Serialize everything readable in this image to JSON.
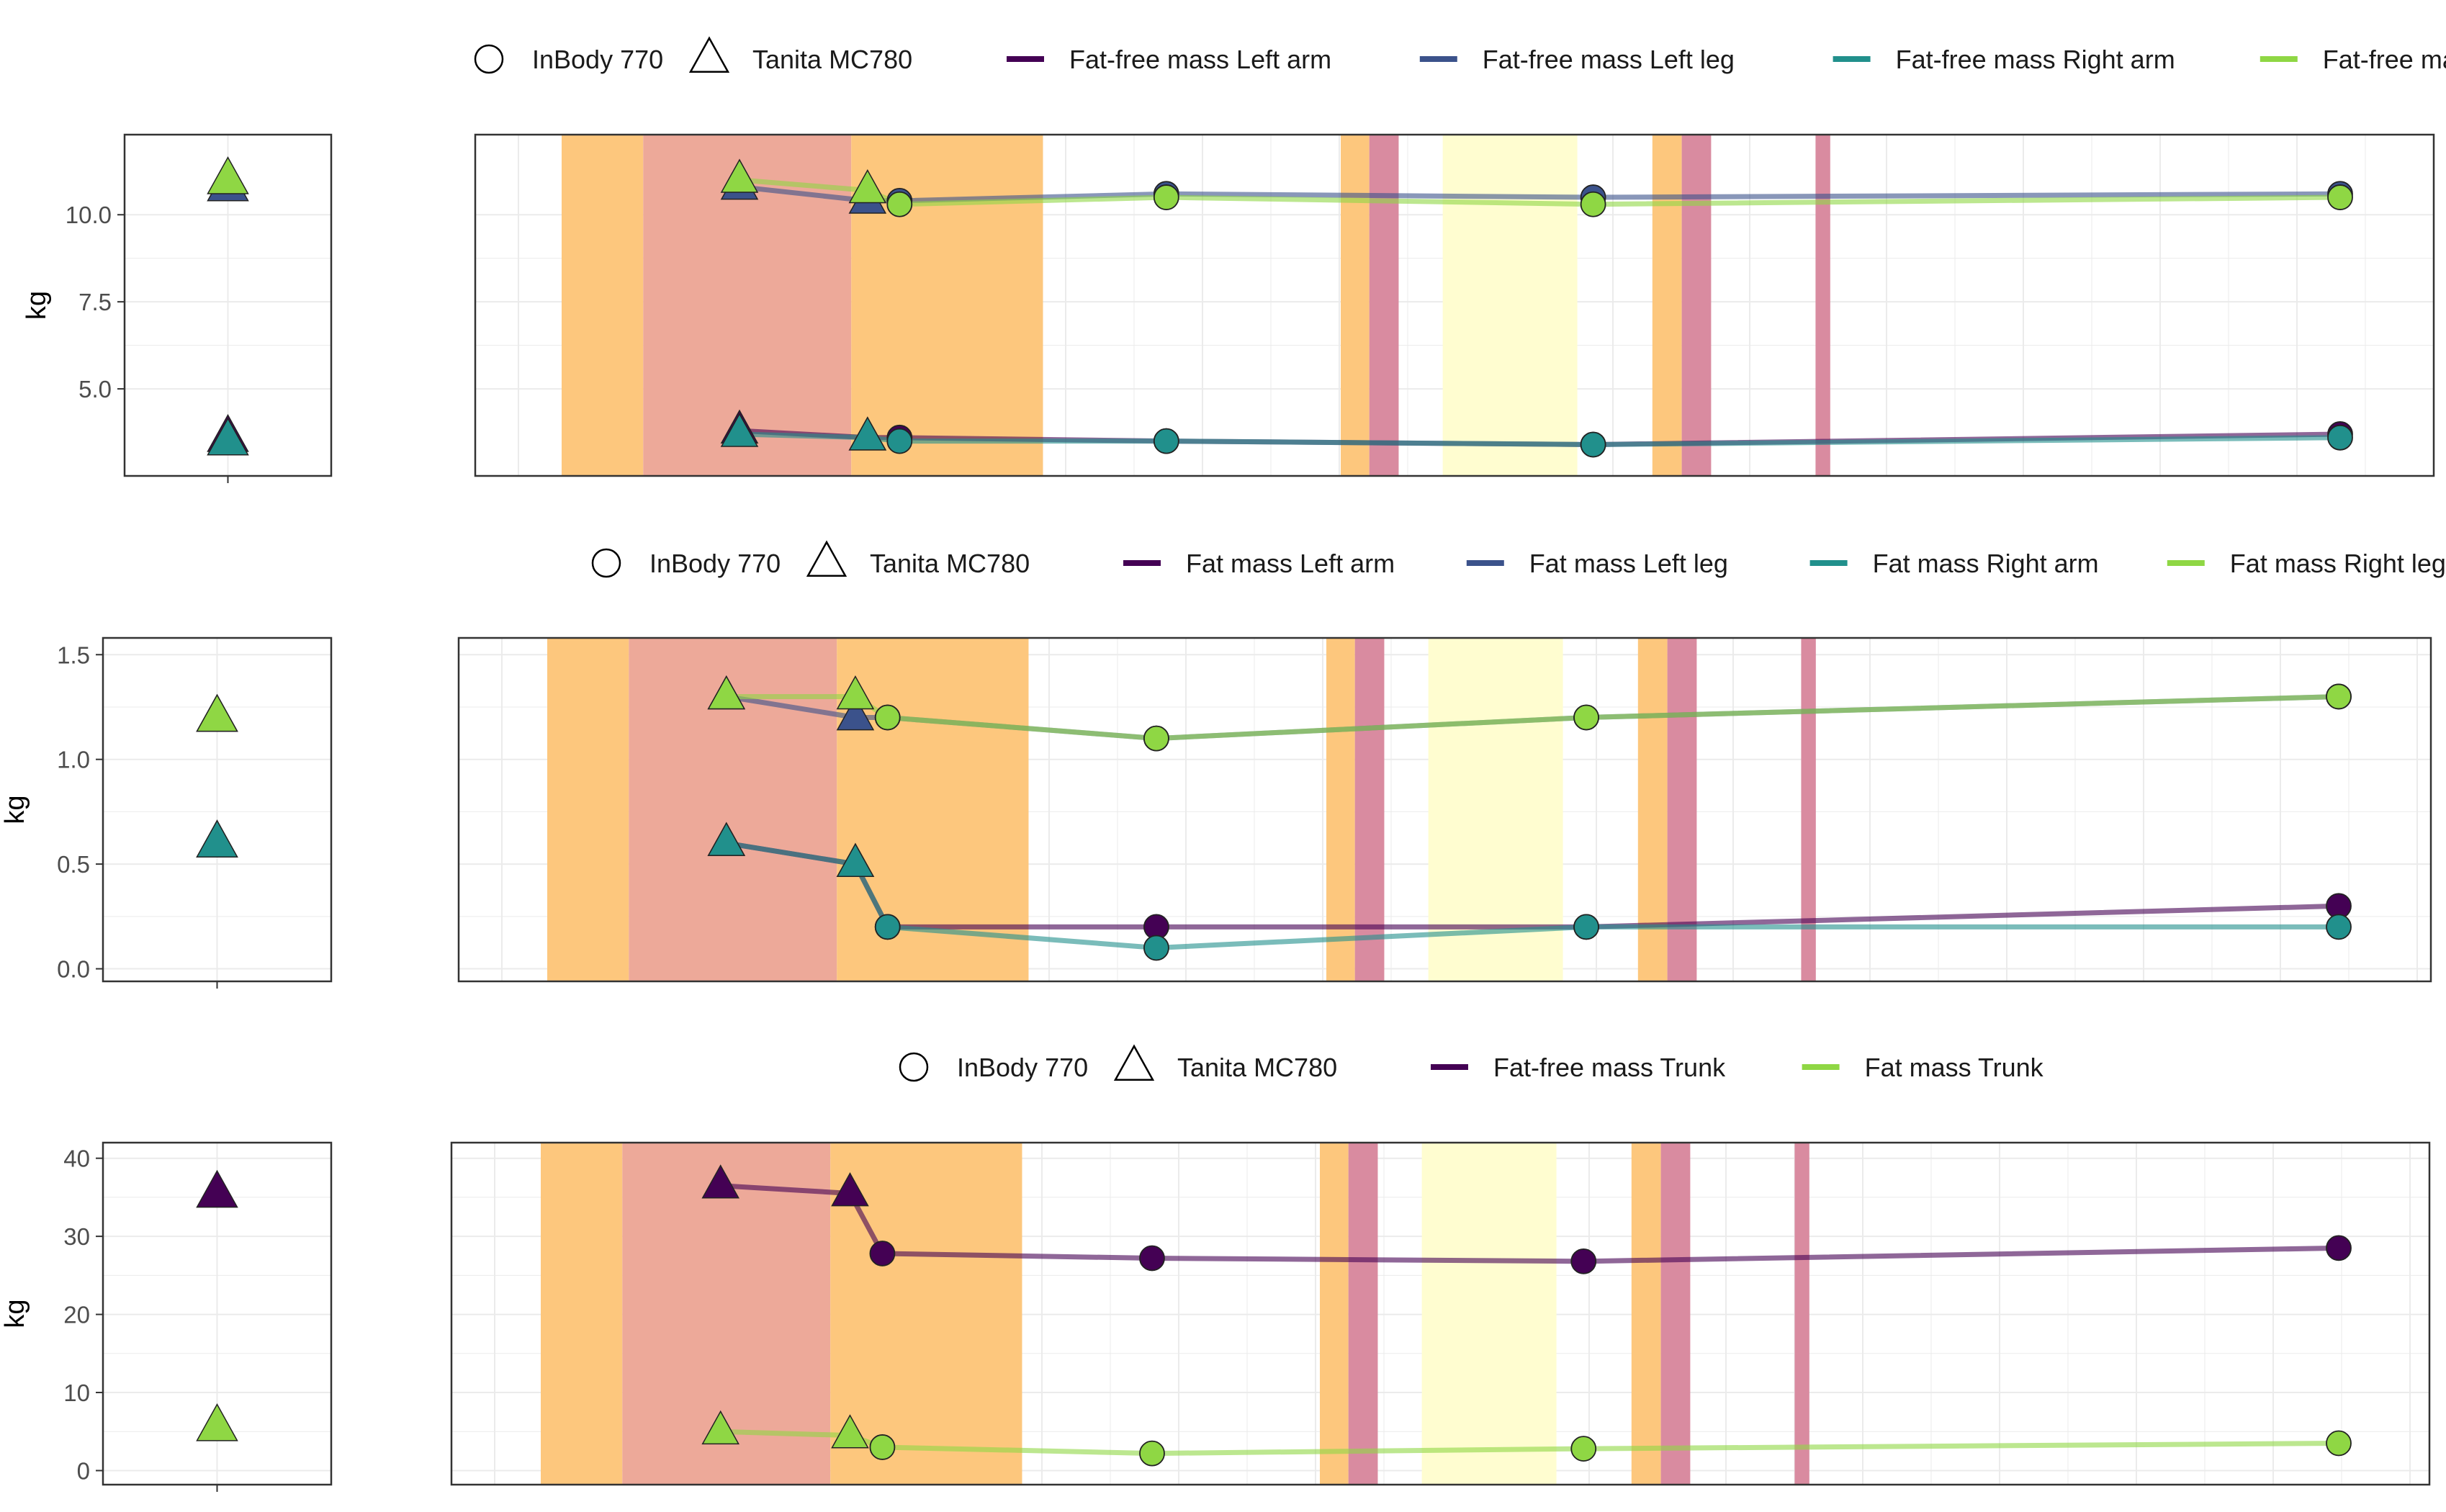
{
  "colors": {
    "orange_band": "#fdc77d",
    "salmon_band": "#eda999",
    "red_band": "#d98ba0",
    "yellow_band": "#fffdd0",
    "grid": "#ebebeb",
    "panel_border": "#333333",
    "line_alpha": 0.6
  },
  "chart_data": [
    {
      "type": "line",
      "ylabel": "kg",
      "ylim": [
        2.5,
        12.3
      ],
      "yticks": [
        5.0,
        7.5,
        10.0
      ],
      "ytick_labels": [
        "5.0",
        "7.5",
        "10.0"
      ],
      "legend_shapes": [
        {
          "shape": "circle",
          "label": "InBody 770"
        },
        {
          "shape": "triangle",
          "label": "Tanita MC780"
        }
      ],
      "series": [
        {
          "name": "Fat-free mass Left arm",
          "color": "#440154",
          "baseline": 3.6,
          "tanita": [
            [
              0.1,
              3.8
            ],
            [
              0.172,
              3.6
            ]
          ],
          "inbody": [
            [
              0.19,
              3.6
            ],
            [
              0.34,
              3.5
            ],
            [
              0.58,
              3.4
            ],
            [
              1.0,
              3.7
            ]
          ]
        },
        {
          "name": "Fat-free mass Left leg",
          "color": "#3b528b",
          "baseline": 10.8,
          "tanita": [
            [
              0.1,
              10.8
            ],
            [
              0.172,
              10.4
            ]
          ],
          "inbody": [
            [
              0.19,
              10.4
            ],
            [
              0.34,
              10.6
            ],
            [
              0.58,
              10.5
            ],
            [
              1.0,
              10.6
            ]
          ]
        },
        {
          "name": "Fat-free mass Right arm",
          "color": "#21908c",
          "baseline": 3.5,
          "tanita": [
            [
              0.1,
              3.7
            ],
            [
              0.172,
              3.6
            ]
          ],
          "inbody": [
            [
              0.19,
              3.5
            ],
            [
              0.34,
              3.5
            ],
            [
              0.58,
              3.4
            ],
            [
              1.0,
              3.6
            ]
          ]
        },
        {
          "name": "Fat-free mass Right leg",
          "color": "#8fd744",
          "baseline": 11.0,
          "tanita": [
            [
              0.1,
              11.0
            ],
            [
              0.172,
              10.7
            ]
          ],
          "inbody": [
            [
              0.19,
              10.3
            ],
            [
              0.34,
              10.5
            ],
            [
              0.58,
              10.3
            ],
            [
              1.0,
              10.5
            ]
          ]
        }
      ]
    },
    {
      "type": "line",
      "ylabel": "kg",
      "ylim": [
        -0.06,
        1.58
      ],
      "yticks": [
        0.0,
        0.5,
        1.0,
        1.5
      ],
      "ytick_labels": [
        "0.0",
        "0.5",
        "1.0",
        "1.5"
      ],
      "legend_shapes": [
        {
          "shape": "circle",
          "label": "InBody 770"
        },
        {
          "shape": "triangle",
          "label": "Tanita MC780"
        }
      ],
      "series": [
        {
          "name": "Fat mass Left arm",
          "color": "#440154",
          "baseline": 0.6,
          "tanita": [
            [
              0.1,
              0.6
            ],
            [
              0.172,
              0.5
            ]
          ],
          "inbody": [
            [
              0.19,
              0.2
            ],
            [
              0.34,
              0.2
            ],
            [
              0.58,
              0.2
            ],
            [
              1.0,
              0.3
            ]
          ]
        },
        {
          "name": "Fat mass Left leg",
          "color": "#3b528b",
          "baseline": 1.2,
          "tanita": [
            [
              0.1,
              1.3
            ],
            [
              0.172,
              1.2
            ]
          ],
          "inbody": [
            [
              0.19,
              1.2
            ],
            [
              0.34,
              1.1
            ],
            [
              0.58,
              1.2
            ],
            [
              1.0,
              1.3
            ]
          ]
        },
        {
          "name": "Fat mass Right arm",
          "color": "#21908c",
          "baseline": 0.6,
          "tanita": [
            [
              0.1,
              0.6
            ],
            [
              0.172,
              0.5
            ]
          ],
          "inbody": [
            [
              0.19,
              0.2
            ],
            [
              0.34,
              0.1
            ],
            [
              0.58,
              0.2
            ],
            [
              1.0,
              0.2
            ]
          ]
        },
        {
          "name": "Fat mass Right leg",
          "color": "#8fd744",
          "baseline": 1.2,
          "tanita": [
            [
              0.1,
              1.3
            ],
            [
              0.172,
              1.3
            ]
          ],
          "inbody": [
            [
              0.19,
              1.2
            ],
            [
              0.34,
              1.1
            ],
            [
              0.58,
              1.2
            ],
            [
              1.0,
              1.3
            ]
          ]
        }
      ]
    },
    {
      "type": "line",
      "ylabel": "kg",
      "ylim": [
        -1.8,
        42.0
      ],
      "yticks": [
        0,
        10,
        20,
        30,
        40
      ],
      "ytick_labels": [
        "0",
        "10",
        "20",
        "30",
        "40"
      ],
      "legend_shapes": [
        {
          "shape": "circle",
          "label": "InBody 770"
        },
        {
          "shape": "triangle",
          "label": "Tanita MC780"
        }
      ],
      "series": [
        {
          "name": "Fat-free mass Trunk",
          "color": "#440154",
          "baseline": 35.5,
          "tanita": [
            [
              0.1,
              36.5
            ],
            [
              0.172,
              35.5
            ]
          ],
          "inbody": [
            [
              0.19,
              27.8
            ],
            [
              0.34,
              27.2
            ],
            [
              0.58,
              26.8
            ],
            [
              1.0,
              28.5
            ]
          ]
        },
        {
          "name": "Fat mass Trunk",
          "color": "#8fd744",
          "baseline": 5.6,
          "tanita": [
            [
              0.1,
              5.0
            ],
            [
              0.172,
              4.5
            ]
          ],
          "inbody": [
            [
              0.19,
              3.0
            ],
            [
              0.34,
              2.2
            ],
            [
              0.58,
              2.8
            ],
            [
              1.0,
              3.5
            ]
          ]
        }
      ]
    }
  ],
  "bands": [
    {
      "from": 0.0,
      "to": 0.1,
      "color": "orange"
    },
    {
      "from": 0.1,
      "to": 0.355,
      "color": "salmon"
    },
    {
      "from": 0.355,
      "to": 0.59,
      "color": "orange"
    },
    {
      "from": 0.955,
      "to": 0.99,
      "color": "orange"
    },
    {
      "from": 0.99,
      "to": 1.026,
      "color": "red"
    },
    {
      "from": 1.08,
      "to": 1.245,
      "color": "yellow"
    },
    {
      "from": 1.337,
      "to": 1.373,
      "color": "orange"
    },
    {
      "from": 1.373,
      "to": 1.409,
      "color": "red"
    },
    {
      "from": 1.537,
      "to": 1.555,
      "color": "red"
    }
  ]
}
